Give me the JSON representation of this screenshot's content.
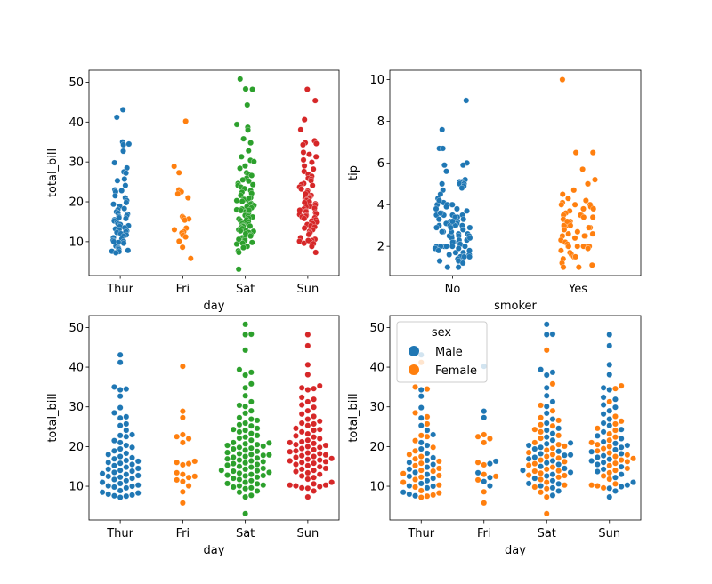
{
  "colors": {
    "blue": "#1f77b4",
    "orange": "#ff7f0e",
    "green": "#2ca02c",
    "red": "#d62728"
  },
  "chart_data": [
    {
      "type": "scatter",
      "subtype": "strip",
      "xlabel": "day",
      "ylabel": "total_bill",
      "categories": [
        "Thur",
        "Fri",
        "Sat",
        "Sun"
      ],
      "ylim": [
        1.5,
        53
      ],
      "yticks": [
        10,
        20,
        30,
        40,
        50
      ],
      "colors": [
        "#1f77b4",
        "#ff7f0e",
        "#2ca02c",
        "#d62728"
      ],
      "series": [
        {
          "category": "Thur",
          "values": [
            43.1,
            41.2,
            35.0,
            34.5,
            34.3,
            32.7,
            29.8,
            28.5,
            27.5,
            27.2,
            25.7,
            25.3,
            24.1,
            23.0,
            22.8,
            22.5,
            21.5,
            21.0,
            20.3,
            19.8,
            19.4,
            18.9,
            18.3,
            18.0,
            17.5,
            17.2,
            16.9,
            16.5,
            16.3,
            16.0,
            15.8,
            15.5,
            15.2,
            14.8,
            14.5,
            14.3,
            14.0,
            13.8,
            13.5,
            13.2,
            13.0,
            12.7,
            12.5,
            12.3,
            12.0,
            11.7,
            11.4,
            11.0,
            10.7,
            10.3,
            10.1,
            9.8,
            9.6,
            8.9,
            8.5,
            8.3,
            8.0,
            7.8,
            7.5,
            7.6,
            7.2,
            10.0
          ]
        },
        {
          "category": "Fri",
          "values": [
            40.2,
            28.9,
            27.3,
            23.0,
            22.5,
            22.0,
            21.0,
            16.3,
            16.0,
            15.7,
            15.4,
            13.4,
            13.0,
            12.5,
            12.2,
            11.6,
            11.2,
            10.1,
            8.6,
            5.8
          ]
        },
        {
          "category": "Sat",
          "values": [
            50.8,
            48.3,
            48.2,
            44.3,
            39.4,
            38.7,
            38.0,
            35.8,
            34.8,
            32.8,
            31.3,
            30.4,
            30.1,
            29.0,
            28.4,
            27.3,
            26.9,
            26.6,
            25.9,
            25.2,
            24.6,
            24.3,
            24.1,
            23.7,
            23.3,
            22.8,
            22.4,
            22.1,
            21.6,
            21.0,
            20.7,
            20.5,
            20.3,
            20.1,
            19.8,
            19.6,
            19.4,
            19.1,
            18.8,
            18.5,
            18.2,
            18.0,
            17.8,
            17.5,
            17.3,
            17.1,
            16.9,
            16.6,
            16.4,
            16.2,
            15.9,
            15.7,
            15.5,
            15.3,
            15.0,
            14.8,
            14.5,
            14.3,
            14.0,
            13.8,
            13.5,
            13.3,
            13.0,
            12.8,
            12.6,
            12.3,
            12.0,
            11.7,
            11.4,
            11.0,
            10.7,
            10.3,
            10.1,
            9.8,
            9.6,
            9.4,
            8.8,
            8.5,
            7.7,
            7.3,
            3.1,
            10.6,
            13.9,
            17.9,
            20.9,
            25.5,
            12.7
          ]
        },
        {
          "category": "Sun",
          "values": [
            48.2,
            45.4,
            40.6,
            38.1,
            35.3,
            34.8,
            34.6,
            34.3,
            32.4,
            31.9,
            31.3,
            30.5,
            29.9,
            29.0,
            28.2,
            27.6,
            26.9,
            26.4,
            25.9,
            25.7,
            25.3,
            24.6,
            24.3,
            24.1,
            23.7,
            23.2,
            22.7,
            22.4,
            22.0,
            21.6,
            21.2,
            21.0,
            20.8,
            20.5,
            20.3,
            20.0,
            19.8,
            19.5,
            19.2,
            18.9,
            18.7,
            18.4,
            18.2,
            17.9,
            17.7,
            17.5,
            17.3,
            17.0,
            16.8,
            16.6,
            16.4,
            16.2,
            16.0,
            15.8,
            15.5,
            15.2,
            14.9,
            14.5,
            14.3,
            14.0,
            13.7,
            13.4,
            13.0,
            12.6,
            12.2,
            11.8,
            11.0,
            10.6,
            10.3,
            10.1,
            9.9,
            9.6,
            9.5,
            8.8,
            7.3,
            10.3
          ]
        }
      ]
    },
    {
      "type": "scatter",
      "subtype": "strip",
      "xlabel": "smoker",
      "ylabel": "tip",
      "categories": [
        "No",
        "Yes"
      ],
      "ylim": [
        0.6,
        10.45
      ],
      "yticks": [
        2,
        4,
        6,
        8,
        10
      ],
      "colors": [
        "#1f77b4",
        "#ff7f0e"
      ],
      "series": [
        {
          "category": "No",
          "values": [
            9.0,
            7.6,
            6.7,
            6.7,
            6.0,
            5.9,
            5.9,
            5.6,
            5.2,
            5.1,
            5.1,
            5.0,
            5.0,
            5.0,
            4.9,
            4.8,
            4.7,
            4.5,
            4.3,
            4.1,
            4.0,
            4.0,
            4.0,
            4.0,
            3.9,
            3.8,
            3.7,
            3.6,
            3.5,
            3.5,
            3.5,
            3.5,
            3.4,
            3.4,
            3.3,
            3.3,
            3.2,
            3.2,
            3.1,
            3.1,
            3.0,
            3.0,
            3.0,
            3.0,
            3.0,
            2.9,
            2.9,
            2.8,
            2.8,
            2.7,
            2.7,
            2.6,
            2.6,
            2.5,
            2.5,
            2.5,
            2.5,
            2.4,
            2.3,
            2.2,
            2.2,
            2.1,
            2.1,
            2.0,
            2.0,
            2.0,
            2.0,
            2.0,
            2.0,
            2.0,
            1.9,
            1.8,
            1.8,
            1.7,
            1.7,
            1.6,
            1.5,
            1.5,
            1.5,
            1.5,
            1.4,
            1.3,
            1.3,
            1.2,
            1.0,
            1.0,
            3.2,
            2.3,
            2.7,
            3.8,
            1.9,
            4.2,
            3.6,
            2.4,
            1.6,
            2.9
          ]
        },
        {
          "category": "Yes",
          "values": [
            10.0,
            6.5,
            6.5,
            5.7,
            5.2,
            5.0,
            5.0,
            4.7,
            4.3,
            4.2,
            4.1,
            4.0,
            4.0,
            4.0,
            3.9,
            3.8,
            3.7,
            3.6,
            3.5,
            3.5,
            3.5,
            3.4,
            3.3,
            3.2,
            3.1,
            3.0,
            3.0,
            3.0,
            3.0,
            2.9,
            2.8,
            2.7,
            2.6,
            2.5,
            2.5,
            2.5,
            2.4,
            2.3,
            2.2,
            2.1,
            2.0,
            2.0,
            2.0,
            2.0,
            2.0,
            2.0,
            1.9,
            1.8,
            1.7,
            1.6,
            1.5,
            1.5,
            1.5,
            1.4,
            1.2,
            1.1,
            1.0,
            1.0,
            3.8,
            2.9,
            3.2,
            4.5,
            2.6,
            3.4,
            1.9
          ]
        }
      ]
    },
    {
      "type": "scatter",
      "subtype": "swarm",
      "xlabel": "day",
      "ylabel": "total_bill",
      "categories": [
        "Thur",
        "Fri",
        "Sat",
        "Sun"
      ],
      "ylim": [
        1.5,
        53
      ],
      "yticks": [
        10,
        20,
        30,
        40,
        50
      ],
      "colors": [
        "#1f77b4",
        "#ff7f0e",
        "#2ca02c",
        "#d62728"
      ],
      "series": [
        {
          "category": "Thur",
          "values": [
            43.1,
            41.2,
            35.0,
            34.5,
            34.3,
            32.7,
            29.8,
            28.5,
            27.5,
            27.2,
            25.7,
            25.3,
            24.1,
            23.0,
            22.8,
            22.5,
            21.5,
            21.0,
            20.3,
            19.8,
            19.4,
            18.9,
            18.3,
            18.0,
            17.5,
            17.2,
            16.9,
            16.5,
            16.3,
            16.0,
            15.8,
            15.5,
            15.2,
            14.8,
            14.5,
            14.3,
            14.0,
            13.8,
            13.5,
            13.2,
            13.0,
            12.7,
            12.5,
            12.3,
            12.0,
            11.7,
            11.4,
            11.0,
            10.7,
            10.3,
            10.1,
            9.8,
            9.6,
            8.9,
            8.5,
            8.3,
            8.0,
            7.8,
            7.5,
            7.6,
            7.2,
            10.0
          ]
        },
        {
          "category": "Fri",
          "values": [
            40.2,
            28.9,
            27.3,
            23.0,
            22.5,
            22.0,
            21.0,
            16.3,
            16.0,
            15.7,
            15.4,
            13.4,
            13.0,
            12.5,
            12.2,
            11.6,
            11.2,
            10.1,
            8.6,
            5.8
          ]
        },
        {
          "category": "Sat",
          "values": [
            50.8,
            48.3,
            48.2,
            44.3,
            39.4,
            38.7,
            38.0,
            35.8,
            34.8,
            32.8,
            31.3,
            30.4,
            30.1,
            29.0,
            28.4,
            27.3,
            26.9,
            26.6,
            25.9,
            25.2,
            24.6,
            24.3,
            24.1,
            23.7,
            23.3,
            22.8,
            22.4,
            22.1,
            21.6,
            21.0,
            20.7,
            20.5,
            20.3,
            20.1,
            19.8,
            19.6,
            19.4,
            19.1,
            18.8,
            18.5,
            18.2,
            18.0,
            17.8,
            17.5,
            17.3,
            17.1,
            16.9,
            16.6,
            16.4,
            16.2,
            15.9,
            15.7,
            15.5,
            15.3,
            15.0,
            14.8,
            14.5,
            14.3,
            14.0,
            13.8,
            13.5,
            13.3,
            13.0,
            12.8,
            12.6,
            12.3,
            12.0,
            11.7,
            11.4,
            11.0,
            10.7,
            10.3,
            10.1,
            9.8,
            9.6,
            9.4,
            8.8,
            8.5,
            7.7,
            7.3,
            3.1,
            10.6,
            13.9,
            17.9,
            20.9,
            25.5,
            12.7
          ]
        },
        {
          "category": "Sun",
          "values": [
            48.2,
            45.4,
            40.6,
            38.1,
            35.3,
            34.8,
            34.6,
            34.3,
            32.4,
            31.9,
            31.3,
            30.5,
            29.9,
            29.0,
            28.2,
            27.6,
            26.9,
            26.4,
            25.9,
            25.7,
            25.3,
            24.6,
            24.3,
            24.1,
            23.7,
            23.2,
            22.7,
            22.4,
            22.0,
            21.6,
            21.2,
            21.0,
            20.8,
            20.5,
            20.3,
            20.0,
            19.8,
            19.5,
            19.2,
            18.9,
            18.7,
            18.4,
            18.2,
            17.9,
            17.7,
            17.5,
            17.3,
            17.0,
            16.8,
            16.6,
            16.4,
            16.2,
            16.0,
            15.8,
            15.5,
            15.2,
            14.9,
            14.5,
            14.3,
            14.0,
            13.7,
            13.4,
            13.0,
            12.6,
            12.2,
            11.8,
            11.0,
            10.6,
            10.3,
            10.1,
            9.9,
            9.6,
            9.5,
            8.8,
            7.3,
            10.3
          ]
        }
      ]
    },
    {
      "type": "scatter",
      "subtype": "swarm",
      "xlabel": "day",
      "ylabel": "total_bill",
      "categories": [
        "Thur",
        "Fri",
        "Sat",
        "Sun"
      ],
      "ylim": [
        1.5,
        53
      ],
      "yticks": [
        10,
        20,
        30,
        40,
        50
      ],
      "hue": "sex",
      "legend": {
        "title": "sex",
        "entries": [
          "Male",
          "Female"
        ],
        "loc": "upper-left"
      },
      "colors": [
        "#1f77b4",
        "#ff7f0e"
      ],
      "series": [
        {
          "name": "Male",
          "values_by_category": {
            "Thur": [
              43.1,
              34.3,
              32.7,
              29.8,
              27.2,
              25.3,
              24.1,
              23.0,
              21.0,
              20.3,
              19.4,
              18.3,
              17.2,
              16.5,
              16.0,
              15.5,
              14.8,
              14.3,
              13.5,
              13.0,
              12.5,
              12.0,
              11.4,
              10.7,
              10.1,
              9.6,
              8.5,
              8.0,
              7.6,
              10.0
            ],
            "Fri": [
              40.2,
              28.9,
              27.3,
              16.3,
              15.7,
              13.4,
              12.2,
              11.2,
              10.1
            ],
            "Sat": [
              50.8,
              48.3,
              48.2,
              39.4,
              38.7,
              38.0,
              34.8,
              32.8,
              31.3,
              30.1,
              28.4,
              26.9,
              25.9,
              24.6,
              24.1,
              23.3,
              22.4,
              21.6,
              20.7,
              20.3,
              19.8,
              19.4,
              18.8,
              18.2,
              17.8,
              17.3,
              16.9,
              16.4,
              15.9,
              15.5,
              15.0,
              14.5,
              14.0,
              13.5,
              13.0,
              12.6,
              12.0,
              11.4,
              10.7,
              10.1,
              9.6,
              8.8,
              7.7,
              10.6,
              17.9,
              20.9
            ],
            "Sun": [
              48.2,
              45.4,
              40.6,
              38.1,
              34.8,
              34.3,
              32.4,
              31.9,
              30.5,
              29.9,
              29.0,
              28.2,
              26.9,
              25.9,
              25.3,
              24.3,
              23.7,
              22.7,
              22.0,
              21.2,
              20.8,
              20.3,
              19.8,
              19.2,
              18.7,
              18.2,
              17.7,
              17.3,
              16.8,
              16.4,
              16.0,
              15.5,
              14.9,
              14.3,
              13.7,
              13.0,
              12.2,
              11.0,
              10.3,
              9.9,
              9.5,
              8.8,
              7.3
            ]
          }
        },
        {
          "name": "Female",
          "values_by_category": {
            "Thur": [
              41.2,
              35.0,
              34.5,
              28.5,
              27.5,
              25.7,
              22.8,
              22.5,
              21.5,
              19.8,
              18.9,
              18.0,
              17.5,
              16.9,
              16.3,
              15.8,
              15.2,
              14.5,
              14.0,
              13.8,
              13.2,
              12.7,
              12.3,
              11.7,
              11.0,
              10.3,
              9.8,
              8.9,
              8.3,
              7.8,
              7.5,
              7.2
            ],
            "Fri": [
              23.0,
              22.5,
              22.0,
              21.0,
              16.0,
              15.4,
              13.0,
              12.5,
              11.6,
              8.6,
              5.8
            ],
            "Sat": [
              44.3,
              35.8,
              30.4,
              29.0,
              27.3,
              26.6,
              25.2,
              24.3,
              23.7,
              22.8,
              22.1,
              21.0,
              20.5,
              20.1,
              19.6,
              19.1,
              18.5,
              18.0,
              17.5,
              17.1,
              16.6,
              16.2,
              15.7,
              15.3,
              14.8,
              14.3,
              13.8,
              13.3,
              12.8,
              12.3,
              11.7,
              11.0,
              10.3,
              9.8,
              9.4,
              8.5,
              7.3,
              3.1,
              13.9,
              25.5,
              12.7
            ],
            "Sun": [
              35.3,
              34.6,
              31.3,
              27.6,
              26.4,
              25.7,
              24.6,
              24.1,
              23.2,
              22.4,
              21.6,
              21.0,
              20.5,
              20.0,
              19.5,
              18.9,
              18.4,
              17.9,
              17.5,
              17.0,
              16.6,
              16.2,
              15.8,
              15.2,
              14.5,
              14.0,
              13.4,
              12.6,
              11.8,
              10.6,
              10.1,
              9.6,
              10.3
            ]
          }
        }
      ]
    }
  ]
}
